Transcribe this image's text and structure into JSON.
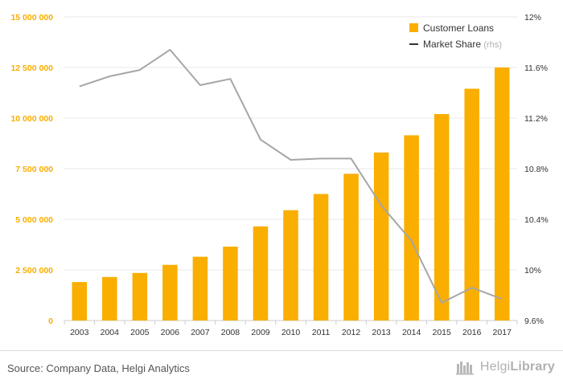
{
  "chart_data": {
    "type": "bar",
    "categories": [
      "2003",
      "2004",
      "2005",
      "2006",
      "2007",
      "2008",
      "2009",
      "2010",
      "2011",
      "2012",
      "2013",
      "2014",
      "2015",
      "2016",
      "2017"
    ],
    "series": [
      {
        "name": "Customer Loans",
        "chart": "bar",
        "axis": "left",
        "color": "#f9ae00",
        "values": [
          1900000,
          2150000,
          2350000,
          2750000,
          3150000,
          3650000,
          4650000,
          5450000,
          6250000,
          7250000,
          8300000,
          9150000,
          10200000,
          11450000,
          12500000
        ]
      },
      {
        "name": "Market Share",
        "suffix": "(rhs)",
        "chart": "line",
        "axis": "right",
        "color": "#a6a6a6",
        "values": [
          11.45,
          11.53,
          11.58,
          11.74,
          11.46,
          11.51,
          11.03,
          10.87,
          10.88,
          10.88,
          10.51,
          10.23,
          9.74,
          9.86,
          9.77
        ]
      }
    ],
    "y_left": {
      "ylim": [
        0,
        15000000
      ],
      "ticks": [
        0,
        2500000,
        5000000,
        7500000,
        10000000,
        12500000,
        15000000
      ],
      "tick_labels": [
        "0",
        "2 500 000",
        "5 000 000",
        "7 500 000",
        "10 000 000",
        "12 500 000",
        "15 000 000"
      ],
      "label_color": "#f9ae00"
    },
    "y_right": {
      "ylim": [
        9.6,
        12
      ],
      "ticks": [
        9.6,
        10,
        10.4,
        10.8,
        11.2,
        11.6,
        12
      ],
      "tick_labels": [
        "9.6%",
        "10%",
        "10.4%",
        "10.8%",
        "11.2%",
        "11.6%",
        "12%"
      ],
      "label_color": "#333333"
    },
    "xlabel": "",
    "ylabel": "",
    "grid": true,
    "legend_position": "top-right"
  },
  "footer": {
    "source": "Source: Company Data, Helgi Analytics",
    "brand_light": "Helgi",
    "brand_bold": "Library"
  }
}
